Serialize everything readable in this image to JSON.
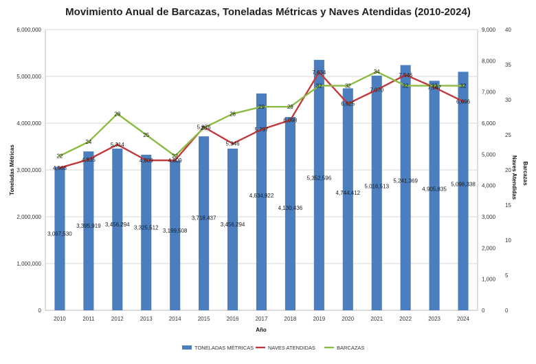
{
  "chart_data": {
    "type": "bar",
    "title": "Movimiento Anual de Barcazas, Toneladas Métricas y Naves Atendidas (2010-2024)",
    "xlabel": "Año",
    "ylabel": "Toneladas Métricas",
    "y2label": "Naves Atendidas",
    "y3label": "Barcazas",
    "categories": [
      "2010",
      "2011",
      "2012",
      "2013",
      "2014",
      "2015",
      "2016",
      "2017",
      "2018",
      "2019",
      "2020",
      "2021",
      "2022",
      "2023",
      "2024"
    ],
    "ylim": [
      0,
      6000000
    ],
    "y_ticks": [
      "0",
      "1,000,000",
      "2,000,000",
      "3,000,000",
      "4,000,000",
      "5,000,000",
      "6,000,000"
    ],
    "y2lim": [
      0,
      9000
    ],
    "y2_ticks": [
      "0",
      "1,000",
      "2,000",
      "3,000",
      "4,000",
      "5,000",
      "6,000",
      "7,000",
      "8,000",
      "9,000"
    ],
    "y3lim": [
      0,
      40
    ],
    "y3_ticks": [
      "0",
      "5",
      "10",
      "15",
      "20",
      "25",
      "30",
      "35",
      "40"
    ],
    "grid": true,
    "legend_position": "bottom",
    "series": [
      {
        "name": "TONELADAS MÉTRICAS",
        "type": "bar",
        "axis": "left",
        "color": "#4a7ebf",
        "values": [
          3067530,
          3395919,
          3456294,
          3325512,
          3199508,
          3718437,
          3456294,
          4634922,
          4130436,
          5352596,
          4744412,
          5016513,
          5241369,
          4905835,
          5098338
        ],
        "labels": [
          "3,067,530",
          "3,395,919",
          "3,456,294",
          "3,325,512",
          "3,199,508",
          "3,718,437",
          "3,456,294",
          "4,634,922",
          "4,130,436",
          "5,352,596",
          "4,744,412",
          "5,016,513",
          "5,241,369",
          "4,905,835",
          "5,098,338"
        ]
      },
      {
        "name": "NAVES ATENDIDAS",
        "type": "line",
        "axis": "right",
        "color": "#c0393b",
        "values": [
          4568,
          4835,
          5314,
          4809,
          4809,
          5876,
          5346,
          5797,
          6098,
          7634,
          6625,
          7070,
          7546,
          7147,
          6696
        ],
        "labels": [
          "4,568",
          "4,835",
          "5,314",
          "4,809",
          "4,809",
          "5,876",
          "5,346",
          "5,797",
          "6,098",
          "7,634",
          "6,625",
          "7,070",
          "7,546",
          "7,147",
          "6,696"
        ]
      },
      {
        "name": "BARCAZAS",
        "type": "line",
        "axis": "right2",
        "color": "#8cba43",
        "values": [
          22,
          24,
          28,
          25,
          22,
          26,
          28,
          29,
          29,
          32,
          32,
          34,
          32,
          32,
          32
        ],
        "labels": [
          "22",
          "24",
          "28",
          "25",
          "22",
          "26",
          "28",
          "29",
          "29",
          "32",
          "32",
          "34",
          "32",
          "32",
          "32"
        ]
      }
    ]
  }
}
